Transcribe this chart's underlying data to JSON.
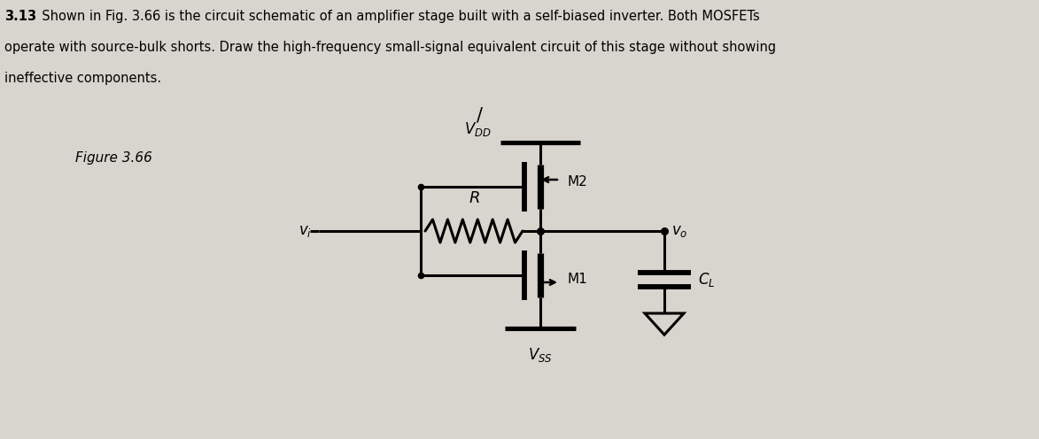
{
  "bg_color": "#d8d5ce",
  "line_color": "#000000",
  "line_width": 2.2,
  "text_color": "#000000",
  "title_bold": "3.13",
  "title_rest": "  Shown in Fig. 3.66 is the circuit schematic of an amplifier stage built with a self-biased inverter. Both MOSFETs",
  "title_line2": "operate with source-bulk shorts. Draw the high-frequency small-signal equivalent circuit of this stage without showing",
  "title_line3": "ineffective components.",
  "figure_label": "Figure 3.66",
  "VDD_label": "$V_{DD}$",
  "VSS_label": "$V_{SS}$",
  "M1_label": "M1",
  "M2_label": "M2",
  "R_label": "$R$",
  "vi_label": "$v_i$",
  "vo_label": "$v_o$",
  "CL_label": "$C_L$"
}
